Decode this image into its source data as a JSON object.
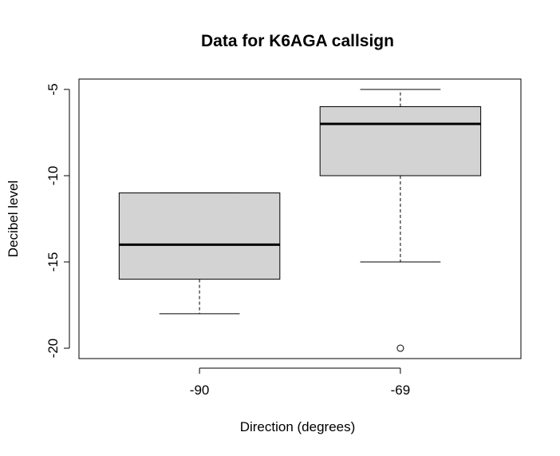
{
  "chart_data": {
    "type": "boxplot",
    "title": "Data for K6AGA callsign",
    "xlabel": "Direction (degrees)",
    "ylabel": "Decibel level",
    "ylim": [
      -20.6,
      -4.4
    ],
    "yticks": [
      -5,
      -10,
      -15,
      -20
    ],
    "grid": false,
    "categories": [
      "-90",
      "-69"
    ],
    "boxes": [
      {
        "category": "-90",
        "whisker_low": -18,
        "q1": -16,
        "median": -14,
        "q3": -11,
        "whisker_high": -11,
        "outliers": []
      },
      {
        "category": "-69",
        "whisker_low": -15,
        "q1": -10,
        "median": -7,
        "q3": -6,
        "whisker_high": -5,
        "outliers": [
          -20
        ]
      }
    ],
    "box_fill": "#d3d3d3"
  }
}
